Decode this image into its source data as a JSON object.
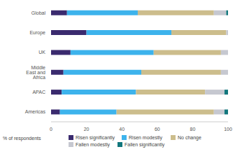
{
  "chart_data": {
    "type": "bar",
    "orientation": "horizontal",
    "stacked": true,
    "grid": false,
    "legend": "bottom",
    "xlabel": "% of respondents",
    "categories": [
      "Global",
      "Europe",
      "UK",
      "Middle East and Africa",
      "APAC",
      "Americas"
    ],
    "xlim": [
      0,
      100
    ],
    "xticks": [
      0,
      20,
      40,
      60,
      80,
      100
    ],
    "series": [
      {
        "name": "Risen significantly",
        "color": "#3a2a6e",
        "values": [
          9,
          20,
          11,
          7,
          6,
          5
        ]
      },
      {
        "name": "Risen modestly",
        "color": "#3db3ec",
        "values": [
          40,
          48,
          47,
          44,
          42,
          32
        ]
      },
      {
        "name": "No change",
        "color": "#ccbd8c",
        "values": [
          43,
          31,
          38,
          45,
          39,
          55
        ]
      },
      {
        "name": "Fallen modestly",
        "color": "#c6c8d0",
        "values": [
          7,
          1,
          4,
          4,
          11,
          6
        ]
      },
      {
        "name": "Fallen significantly",
        "color": "#12777d",
        "values": [
          1,
          0,
          0,
          0,
          2,
          2
        ]
      }
    ]
  }
}
